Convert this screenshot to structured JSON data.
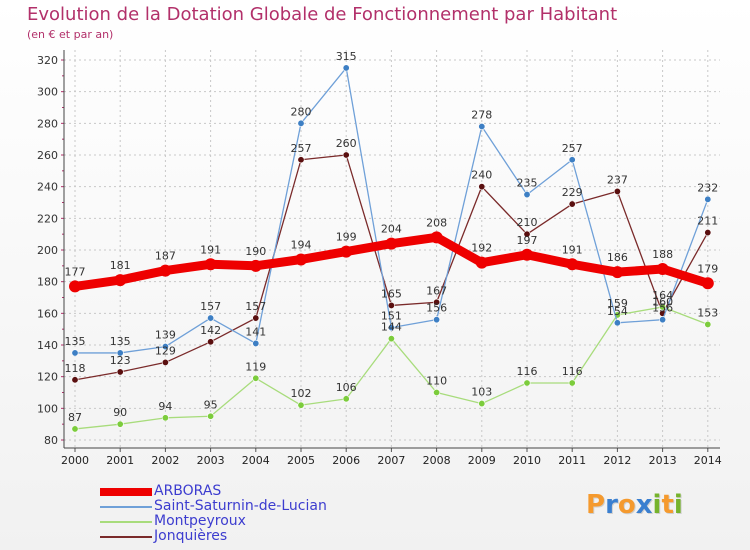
{
  "title": "Evolution de la Dotation Globale de Fonctionnement par Habitant",
  "subtitle": "(en € et par an)",
  "logo": {
    "letters": [
      "P",
      "r",
      "o",
      "x",
      "i",
      "t",
      "i"
    ],
    "colors": [
      "#f59a2e",
      "#3a7fd0",
      "#f59a2e",
      "#3a7fd0",
      "#76b32c",
      "#f59a2e",
      "#76b32c"
    ]
  },
  "chart_data": {
    "type": "line",
    "x": [
      "2000",
      "2001",
      "2002",
      "2003",
      "2004",
      "2005",
      "2006",
      "2007",
      "2008",
      "2009",
      "2010",
      "2011",
      "2012",
      "2013",
      "2014"
    ],
    "ylim": [
      80,
      320
    ],
    "yticks": [
      80,
      100,
      120,
      140,
      160,
      180,
      200,
      220,
      240,
      260,
      280,
      300,
      320
    ],
    "grid": true,
    "legend_position": "bottom-left",
    "series": [
      {
        "name": "ARBORAS",
        "color": "#ee0000",
        "dot": "#ee0000",
        "values": [
          177,
          181,
          187,
          191,
          190,
          194,
          199,
          204,
          208,
          192,
          197,
          191,
          186,
          188,
          179
        ]
      },
      {
        "name": "Saint-Saturnin-de-Lucian",
        "color": "#6fa0d8",
        "dot": "#3d7fc4",
        "values": [
          135,
          135,
          139,
          157,
          141,
          280,
          315,
          151,
          156,
          278,
          235,
          257,
          154,
          156,
          232
        ]
      },
      {
        "name": "Montpeyroux",
        "color": "#a8dc7c",
        "dot": "#7ccc3c",
        "values": [
          87,
          90,
          94,
          95,
          119,
          102,
          106,
          144,
          110,
          103,
          116,
          116,
          159,
          164,
          153
        ]
      },
      {
        "name": "Jonquières",
        "color": "#7a2a2a",
        "dot": "#5a0f0f",
        "values": [
          118,
          123,
          129,
          142,
          157,
          257,
          260,
          165,
          167,
          240,
          210,
          229,
          237,
          160,
          211
        ]
      }
    ]
  }
}
